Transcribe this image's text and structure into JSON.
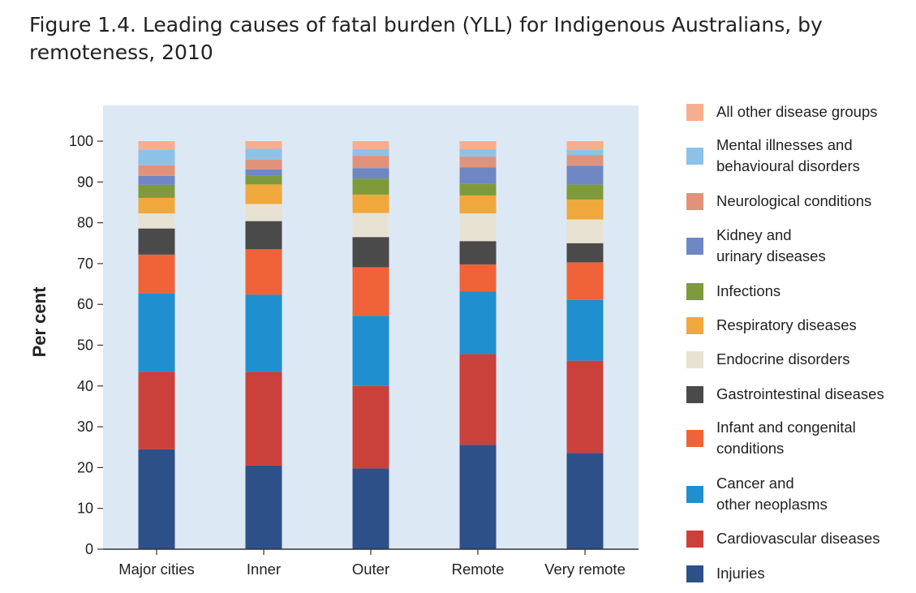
{
  "title": "Figure 1.4. Leading causes of fatal burden (YLL) for Indigenous Australians, by remoteness, 2010",
  "chart_data": {
    "type": "bar",
    "stacked": true,
    "title": "Figure 1.4. Leading causes of fatal burden (YLL) for Indigenous Australians, by remoteness, 2010",
    "xlabel": "",
    "ylabel": "Per cent",
    "ylim": [
      0,
      100
    ],
    "yticks": [
      0,
      10,
      20,
      30,
      40,
      50,
      60,
      70,
      80,
      90,
      100
    ],
    "grid": false,
    "legend_position": "right",
    "categories": [
      "Major cities",
      "Inner",
      "Outer",
      "Remote",
      "Very remote"
    ],
    "series": [
      {
        "name": "Injuries",
        "color": "#2e5088",
        "values": [
          24.5,
          20.5,
          19.8,
          25.6,
          23.6
        ]
      },
      {
        "name": "Cardiovascular diseases",
        "color": "#c9413a",
        "values": [
          19.0,
          23.0,
          20.2,
          22.2,
          22.6
        ]
      },
      {
        "name": "Cancer and other neoplasms",
        "color": "#1f8fcf",
        "values": [
          19.2,
          18.9,
          17.2,
          15.4,
          14.9
        ]
      },
      {
        "name": "Infant and congenital conditions",
        "color": "#f06238",
        "values": [
          9.5,
          11.1,
          11.9,
          6.6,
          9.2
        ]
      },
      {
        "name": "Gastrointestinal diseases",
        "color": "#4a4a4a",
        "values": [
          6.4,
          6.9,
          7.4,
          5.7,
          4.7
        ]
      },
      {
        "name": "Endocrine disorders",
        "color": "#e7e2d2",
        "values": [
          3.7,
          4.2,
          5.9,
          6.8,
          5.8
        ]
      },
      {
        "name": "Respiratory diseases",
        "color": "#f0a83c",
        "values": [
          3.8,
          4.8,
          4.5,
          4.4,
          4.9
        ]
      },
      {
        "name": "Infections",
        "color": "#7e9a3b",
        "values": [
          3.2,
          2.2,
          3.9,
          2.8,
          3.7
        ]
      },
      {
        "name": "Kidney and urinary diseases",
        "color": "#6f87c2",
        "values": [
          2.2,
          1.5,
          2.6,
          4.1,
          4.6
        ]
      },
      {
        "name": "Neurological conditions",
        "color": "#e0927b",
        "values": [
          2.6,
          2.4,
          3.0,
          2.6,
          2.6
        ]
      },
      {
        "name": "Mental illnesses and behavioural disorders",
        "color": "#8ec1e6",
        "values": [
          3.8,
          2.6,
          1.6,
          1.8,
          1.2
        ]
      },
      {
        "name": "All other disease groups",
        "color": "#f6ae90",
        "values": [
          2.1,
          1.9,
          2.0,
          2.0,
          2.2
        ]
      }
    ]
  },
  "legend": {
    "items": [
      {
        "lines": [
          "All other disease groups"
        ],
        "color": "#f6ae90"
      },
      {
        "lines": [
          "Mental illnesses and",
          "behavioural disorders"
        ],
        "color": "#8ec1e6"
      },
      {
        "lines": [
          "Neurological conditions"
        ],
        "color": "#e0927b"
      },
      {
        "lines": [
          "Kidney and",
          "urinary diseases"
        ],
        "color": "#6f87c2"
      },
      {
        "lines": [
          "Infections"
        ],
        "color": "#7e9a3b"
      },
      {
        "lines": [
          "Respiratory diseases"
        ],
        "color": "#f0a83c"
      },
      {
        "lines": [
          "Endocrine disorders"
        ],
        "color": "#e7e2d2"
      },
      {
        "lines": [
          "Gastrointestinal diseases"
        ],
        "color": "#4a4a4a"
      },
      {
        "lines": [
          "Infant and congenital",
          "conditions"
        ],
        "color": "#f06238"
      },
      {
        "lines": [
          "Cancer and",
          "other neoplasms"
        ],
        "color": "#1f8fcf"
      },
      {
        "lines": [
          "Cardiovascular diseases"
        ],
        "color": "#c9413a"
      },
      {
        "lines": [
          "Injuries"
        ],
        "color": "#2e5088"
      }
    ]
  },
  "colors": {
    "plot_background": "#dde8f5",
    "axis": "#333333"
  }
}
